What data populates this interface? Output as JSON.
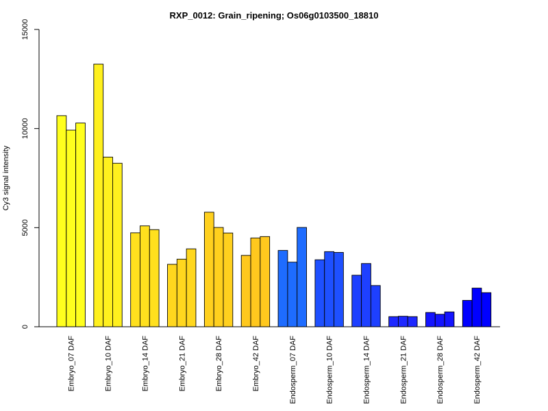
{
  "chart_data": {
    "type": "bar",
    "title": "RXP_0012: Grain_ripening; Os06g0103500_18810",
    "ylabel": "Cy3 signal intensity",
    "ylim": [
      0,
      15000
    ],
    "yticks": [
      0,
      5000,
      10000,
      15000
    ],
    "ytick_labels": [
      "0",
      "5000",
      "10000",
      "15000"
    ],
    "grid": false,
    "legend": "none",
    "categories": [
      "Embryo_07 DAF",
      "Embryo_10 DAF",
      "Embryo_14 DAF",
      "Embryo_21 DAF",
      "Embryo_28 DAF",
      "Embryo_42 DAF",
      "Endosperm_07 DAF",
      "Endosperm_10 DAF",
      "Endosperm_14 DAF",
      "Endosperm_21 DAF",
      "Endosperm_28 DAF",
      "Endosperm_42 DAF"
    ],
    "values": [
      [
        10650,
        9920,
        10280
      ],
      [
        13250,
        8560,
        8250
      ],
      [
        4740,
        5090,
        4900
      ],
      [
        3150,
        3410,
        3930
      ],
      [
        5780,
        5010,
        4730
      ],
      [
        3600,
        4480,
        4550
      ],
      [
        3850,
        3260,
        5010
      ],
      [
        3380,
        3790,
        3750
      ],
      [
        2600,
        3190,
        2080
      ],
      [
        510,
        530,
        510
      ],
      [
        720,
        630,
        750
      ],
      [
        1330,
        1950,
        1720
      ]
    ],
    "colors": [
      "#ffff1e",
      "#fff01e",
      "#ffe01e",
      "#ffd71e",
      "#ffd01e",
      "#ffc81e",
      "#1e6cff",
      "#1e50ff",
      "#1e40ff",
      "#1e28ff",
      "#1414ff",
      "#0000ff"
    ]
  }
}
